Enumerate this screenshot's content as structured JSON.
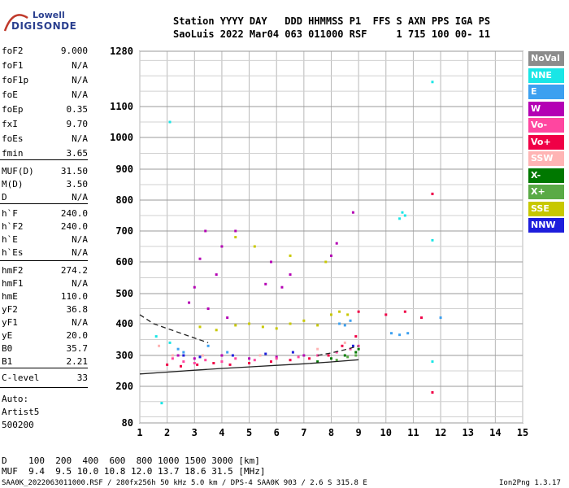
{
  "logo": {
    "line1": "Lowell",
    "line2": "DIGISONDE"
  },
  "header": {
    "row1": "Station YYYY DAY   DDD HHMMSS P1  FFS S AXN PPS IGA PS",
    "row2": "SaoLuis 2022 Mar04 063 011000 RSF     1 715 100 00- 11"
  },
  "params": [
    {
      "k": "foF2",
      "v": "9.000"
    },
    {
      "k": "foF1",
      "v": "N/A"
    },
    {
      "k": "foF1p",
      "v": "N/A"
    },
    {
      "k": "foE",
      "v": "N/A"
    },
    {
      "k": "foEp",
      "v": "0.35"
    },
    {
      "k": "fxI",
      "v": "9.70"
    },
    {
      "k": "foEs",
      "v": "N/A"
    },
    {
      "k": "fmin",
      "v": "3.65"
    },
    {
      "k": "MUF(D)",
      "v": "31.50"
    },
    {
      "k": "M(D)",
      "v": "3.50"
    },
    {
      "k": "D",
      "v": "N/A"
    },
    {
      "k": "h`F",
      "v": "240.0"
    },
    {
      "k": "h`F2",
      "v": "240.0"
    },
    {
      "k": "h`E",
      "v": "N/A"
    },
    {
      "k": "h`Es",
      "v": "N/A"
    },
    {
      "k": "hmF2",
      "v": "274.2"
    },
    {
      "k": "hmF1",
      "v": "N/A"
    },
    {
      "k": "hmE",
      "v": "110.0"
    },
    {
      "k": "yF2",
      "v": "36.8"
    },
    {
      "k": "yF1",
      "v": "N/A"
    },
    {
      "k": "yE",
      "v": "20.0"
    },
    {
      "k": "B0",
      "v": "35.7"
    },
    {
      "k": "B1",
      "v": "2.21"
    },
    {
      "k": "C-level",
      "v": "33"
    }
  ],
  "auto": {
    "line1": "Auto:",
    "line2": "Artist5",
    "line3": "500200"
  },
  "legend": [
    {
      "label": "NoVal",
      "color": "#8c8c8c"
    },
    {
      "label": "NNE",
      "color": "#19e6e6"
    },
    {
      "label": "E",
      "color": "#3ca0f0"
    },
    {
      "label": "W",
      "color": "#b400b4"
    },
    {
      "label": "Vo-",
      "color": "#ff46a0"
    },
    {
      "label": "Vo+",
      "color": "#f00046"
    },
    {
      "label": "SSW",
      "color": "#ffb4b4"
    },
    {
      "label": "X-",
      "color": "#007800"
    },
    {
      "label": "X+",
      "color": "#5aaa46"
    },
    {
      "label": "SSE",
      "color": "#c8c800"
    },
    {
      "label": "NNW",
      "color": "#1e1edc"
    }
  ],
  "bottom": {
    "d_row": "D    100  200  400  600  800 1000 1500 3000 [km]",
    "muf_row": "MUF  9.4  9.5 10.0 10.8 12.0 13.7 18.6 31.5 [MHz]"
  },
  "footer": {
    "left": "SAA0K_2022063011000.RSF / 280fx256h 50 kHz 5.0 km / DPS-4 SAA0K 903 / 2.6 S 315.8 E",
    "right": "Ion2Png 1.3.17"
  },
  "chart_data": {
    "type": "scatter",
    "title": "",
    "xlabel": "",
    "ylabel": "",
    "xlim": [
      1,
      15
    ],
    "ylim": [
      80,
      1280
    ],
    "y_scale": "reciprocal-like",
    "x_ticks": [
      1,
      2,
      3,
      4,
      5,
      6,
      7,
      8,
      9,
      10,
      11,
      12,
      13,
      14,
      15
    ],
    "y_ticks": [
      80,
      200,
      300,
      400,
      500,
      600,
      700,
      800,
      900,
      1000,
      1100,
      1280
    ],
    "grid": true,
    "legend_placement": "right",
    "series": [
      {
        "name": "NNE",
        "points": [
          [
            1.6,
            360
          ],
          [
            2.1,
            340
          ],
          [
            2.1,
            1050
          ],
          [
            10.5,
            740
          ],
          [
            10.6,
            760
          ],
          [
            10.7,
            750
          ],
          [
            11.7,
            1180
          ],
          [
            11.7,
            670
          ],
          [
            11.7,
            280
          ],
          [
            1.8,
            145
          ]
        ]
      },
      {
        "name": "E",
        "points": [
          [
            2.4,
            320
          ],
          [
            2.6,
            310
          ],
          [
            3.5,
            330
          ],
          [
            4.2,
            310
          ],
          [
            8.3,
            400
          ],
          [
            8.5,
            395
          ],
          [
            8.7,
            410
          ],
          [
            10.2,
            370
          ],
          [
            10.5,
            365
          ],
          [
            10.8,
            370
          ],
          [
            12.0,
            420
          ]
        ]
      },
      {
        "name": "W",
        "points": [
          [
            2.8,
            470
          ],
          [
            3.0,
            520
          ],
          [
            3.2,
            610
          ],
          [
            3.4,
            700
          ],
          [
            3.5,
            450
          ],
          [
            3.8,
            560
          ],
          [
            4.0,
            650
          ],
          [
            4.2,
            420
          ],
          [
            4.5,
            700
          ],
          [
            5.6,
            530
          ],
          [
            5.8,
            600
          ],
          [
            6.2,
            520
          ],
          [
            6.5,
            560
          ],
          [
            8.0,
            620
          ],
          [
            8.2,
            660
          ],
          [
            8.8,
            760
          ],
          [
            2.4,
            300
          ],
          [
            3.0,
            290
          ],
          [
            4.0,
            300
          ],
          [
            5.0,
            290
          ],
          [
            6.0,
            295
          ],
          [
            7.0,
            300
          ],
          [
            11.7,
            820
          ]
        ]
      },
      {
        "name": "Vo-",
        "points": [
          [
            2.2,
            290
          ],
          [
            2.6,
            280
          ],
          [
            3.0,
            275
          ],
          [
            3.4,
            285
          ],
          [
            4.0,
            280
          ],
          [
            4.5,
            290
          ],
          [
            5.2,
            285
          ],
          [
            6.0,
            290
          ],
          [
            6.8,
            295
          ],
          [
            7.5,
            300
          ],
          [
            8.2,
            310
          ],
          [
            8.7,
            320
          ],
          [
            9.0,
            330
          ]
        ]
      },
      {
        "name": "Vo+",
        "points": [
          [
            2.0,
            270
          ],
          [
            2.5,
            265
          ],
          [
            3.1,
            270
          ],
          [
            3.7,
            275
          ],
          [
            4.3,
            270
          ],
          [
            5.0,
            275
          ],
          [
            5.8,
            280
          ],
          [
            6.5,
            285
          ],
          [
            7.2,
            290
          ],
          [
            7.9,
            300
          ],
          [
            8.4,
            330
          ],
          [
            8.9,
            360
          ],
          [
            9.0,
            440
          ],
          [
            10.0,
            430
          ],
          [
            10.7,
            440
          ],
          [
            11.3,
            420
          ],
          [
            11.7,
            820
          ],
          [
            11.7,
            180
          ]
        ]
      },
      {
        "name": "SSW",
        "points": [
          [
            1.7,
            330
          ],
          [
            2.2,
            300
          ],
          [
            3.3,
            300
          ],
          [
            5.4,
            300
          ],
          [
            7.5,
            320
          ],
          [
            8.5,
            340
          ]
        ]
      },
      {
        "name": "X-",
        "points": [
          [
            7.5,
            280
          ],
          [
            8.0,
            290
          ],
          [
            8.5,
            300
          ],
          [
            8.9,
            310
          ],
          [
            9.0,
            320
          ]
        ]
      },
      {
        "name": "X+",
        "points": [
          [
            8.2,
            285
          ],
          [
            8.6,
            295
          ],
          [
            8.9,
            300
          ]
        ]
      },
      {
        "name": "SSE",
        "points": [
          [
            3.2,
            390
          ],
          [
            3.8,
            380
          ],
          [
            4.5,
            395
          ],
          [
            5.0,
            400
          ],
          [
            5.5,
            390
          ],
          [
            6.0,
            385
          ],
          [
            6.5,
            400
          ],
          [
            7.0,
            410
          ],
          [
            7.5,
            395
          ],
          [
            8.0,
            430
          ],
          [
            8.3,
            440
          ],
          [
            8.6,
            430
          ],
          [
            4.5,
            680
          ],
          [
            5.2,
            650
          ],
          [
            6.5,
            620
          ],
          [
            7.8,
            600
          ]
        ]
      },
      {
        "name": "NNW",
        "points": [
          [
            2.6,
            300
          ],
          [
            3.2,
            295
          ],
          [
            4.4,
            300
          ],
          [
            5.6,
            305
          ],
          [
            6.6,
            310
          ],
          [
            8.8,
            330
          ]
        ]
      }
    ],
    "lines": [
      {
        "name": "profile_solid",
        "points": [
          [
            1,
            240
          ],
          [
            2,
            246
          ],
          [
            3,
            252
          ],
          [
            4,
            258
          ],
          [
            5,
            263
          ],
          [
            6,
            268
          ],
          [
            7,
            273
          ],
          [
            8,
            279
          ],
          [
            9,
            286
          ]
        ]
      },
      {
        "name": "profile_dashed",
        "points": [
          [
            1,
            430
          ],
          [
            1.5,
            400
          ],
          [
            2,
            385
          ],
          [
            2.5,
            370
          ],
          [
            3,
            355
          ],
          [
            3.5,
            340
          ]
        ]
      },
      {
        "name": "trace_dashed",
        "points": [
          [
            7.5,
            300
          ],
          [
            8.0,
            308
          ],
          [
            8.5,
            318
          ],
          [
            9.0,
            330
          ]
        ]
      }
    ]
  }
}
